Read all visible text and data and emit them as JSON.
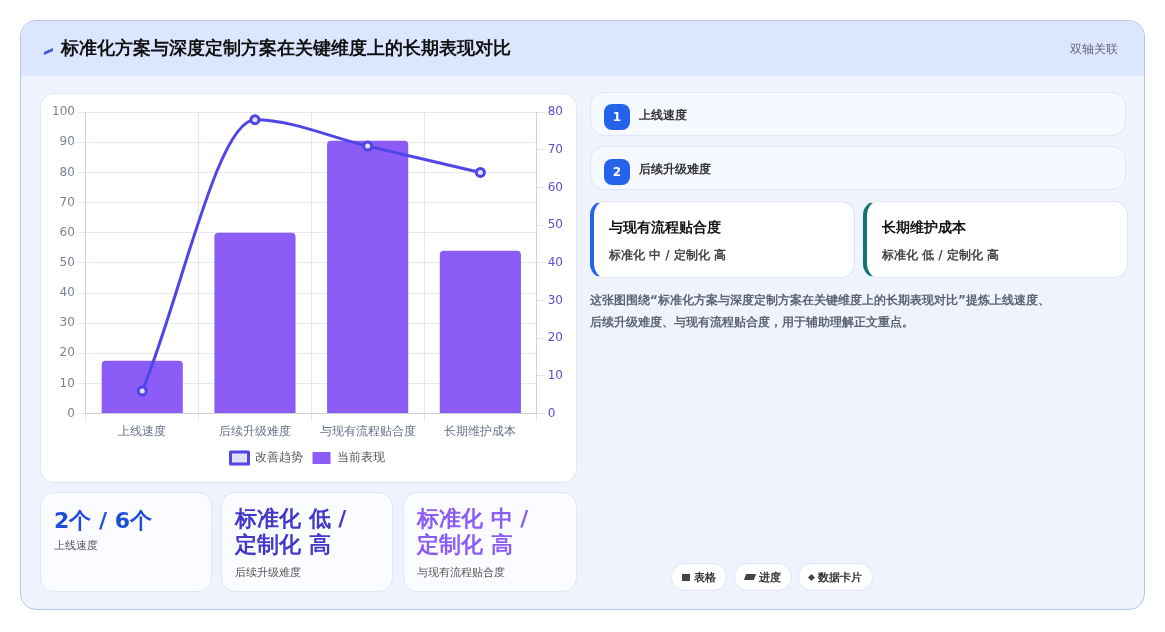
{
  "chart_data": {
    "type": "bar",
    "title": "标准化方案与深度定制方案在关键维度上的长期表现对比",
    "categories": [
      "上线速度",
      "后续升级难度",
      "与现有流程贴合度",
      "长期维护成本"
    ],
    "series": [
      {
        "name": "改善趋势",
        "type": "line",
        "axis": "y2",
        "color": "#4f46e5",
        "values": [
          6,
          78,
          71,
          64
        ]
      },
      {
        "name": "当前表现",
        "color": "#8b5cf6",
        "values": [
          17.5,
          60,
          90.5,
          54
        ]
      }
    ],
    "ylim": [
      0,
      100
    ],
    "yticks": [
      0,
      10,
      20,
      30,
      40,
      50,
      60,
      70,
      80,
      90,
      100
    ],
    "y2lim": [
      0,
      80
    ],
    "y2ticks": [
      0,
      10,
      20,
      30,
      40,
      50,
      60,
      70,
      80
    ],
    "grid": true,
    "legend": "bottom",
    "marker": "circle",
    "line_style": "solid",
    "annotations": [
      "双轴关联",
      "1",
      "上线速度",
      "2",
      "后续升级难度",
      "与现有流程贴合度",
      "标准化 中 / 定制化 高",
      "长期维护成本",
      "标准化 低 / 定制化 高",
      "这张图围绕“标准化方案与深度定制方案在关键维度上的长期表现对比”提炼上线速度、后续升级难度、与现有流程贴合度，用于辅助理解正文重点。",
      "2个 / 6个",
      "上线速度",
      "标准化 低 / 定制化 高",
      "后续升级难度",
      "标准化 中 / 定制化 高",
      "与现有流程贴合度",
      "表格",
      "进度",
      "数据卡片"
    ]
  }
}
